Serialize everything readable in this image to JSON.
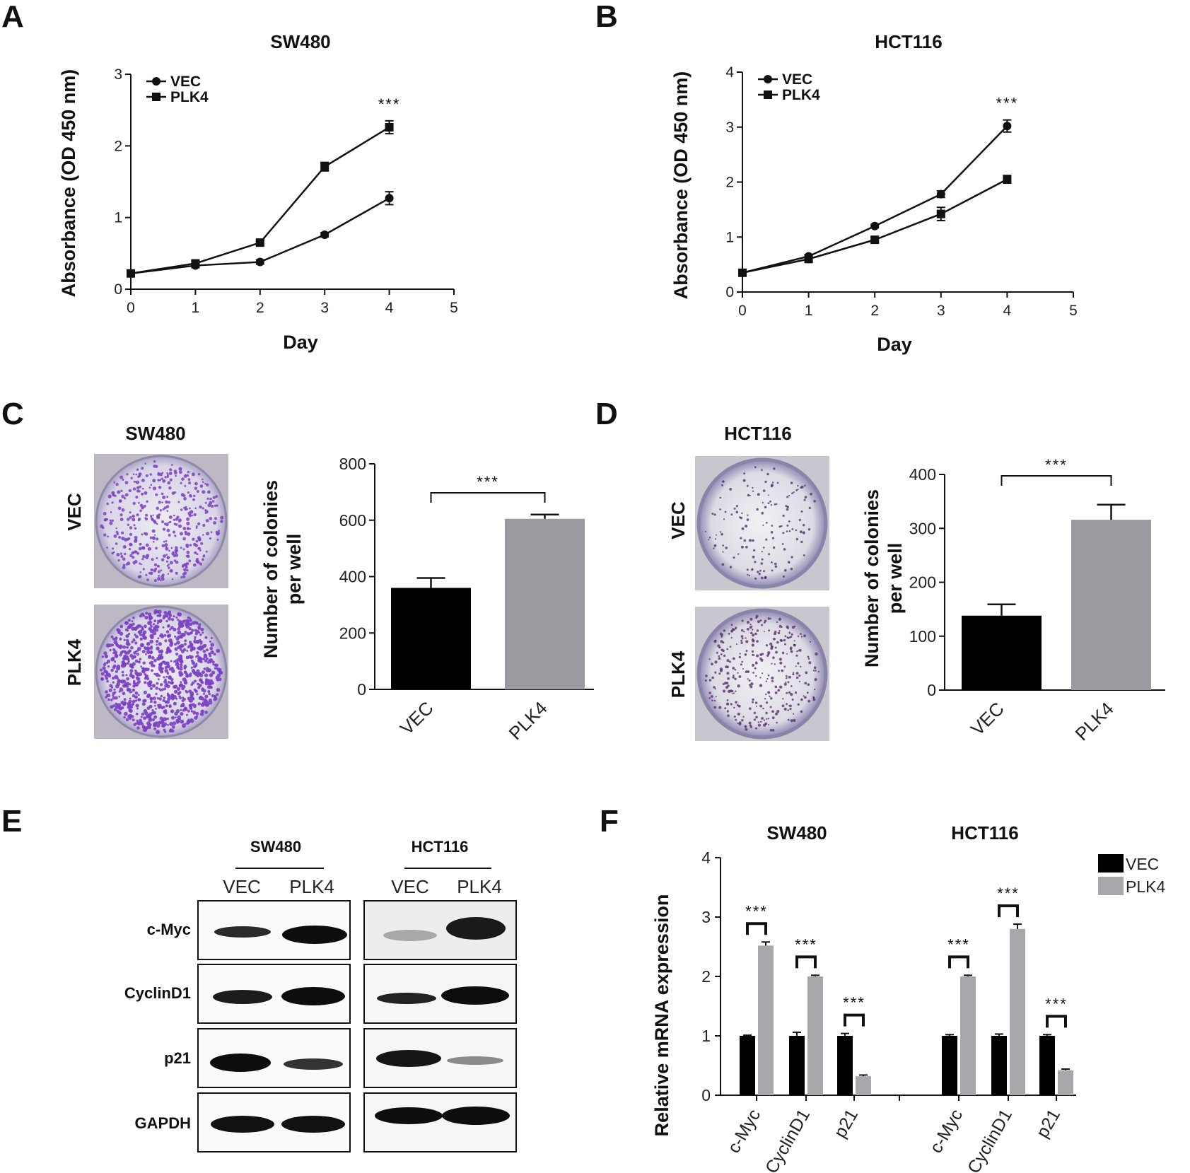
{
  "panel_labels": {
    "a": "A",
    "b": "B",
    "c": "C",
    "d": "D",
    "e": "E",
    "f": "F"
  },
  "colors": {
    "vec": "#000000",
    "plk4": "#9a9aa0",
    "plk4_light": "#a8a8ac",
    "colony_stain": "#7b3fc4",
    "plate_bg": "#e6e4ec"
  },
  "chart_data": [
    {
      "id": "A",
      "type": "line",
      "title": "SW480",
      "xlabel": "Day",
      "ylabel": "Absorbance (OD 450 nm)",
      "xlim": [
        0,
        5
      ],
      "ylim": [
        0,
        3
      ],
      "xticks": [
        0,
        1,
        2,
        3,
        4,
        5
      ],
      "yticks": [
        0,
        1,
        2,
        3
      ],
      "legend_position": "top-left",
      "annotation": "***",
      "x": [
        0,
        1,
        2,
        3,
        4
      ],
      "series": [
        {
          "name": "VEC",
          "marker": "circle",
          "values": [
            0.22,
            0.33,
            0.38,
            0.76,
            1.27
          ],
          "err": [
            0.02,
            0.03,
            0.03,
            0.03,
            0.09
          ]
        },
        {
          "name": "PLK4",
          "marker": "square",
          "values": [
            0.22,
            0.36,
            0.65,
            1.71,
            2.26
          ],
          "err": [
            0.02,
            0.03,
            0.04,
            0.06,
            0.09
          ]
        }
      ]
    },
    {
      "id": "B",
      "type": "line",
      "title": "HCT116",
      "xlabel": "Day",
      "ylabel": "Absorbance (OD 450 nm)",
      "xlim": [
        0,
        5
      ],
      "ylim": [
        0,
        4
      ],
      "xticks": [
        0,
        1,
        2,
        3,
        4,
        5
      ],
      "yticks": [
        0,
        1,
        2,
        3,
        4
      ],
      "legend_position": "top-left",
      "annotation": "***",
      "x": [
        0,
        1,
        2,
        3,
        4
      ],
      "series": [
        {
          "name": "VEC",
          "marker": "circle",
          "values": [
            0.35,
            0.65,
            1.2,
            1.78,
            3.02
          ],
          "err": [
            0.02,
            0.03,
            0.03,
            0.06,
            0.11
          ]
        },
        {
          "name": "PLK4",
          "marker": "square",
          "values": [
            0.35,
            0.6,
            0.95,
            1.42,
            2.05
          ],
          "err": [
            0.02,
            0.03,
            0.04,
            0.12,
            0.07
          ]
        }
      ]
    },
    {
      "id": "C",
      "type": "bar",
      "title": "SW480",
      "ylabel_lines": [
        "Number of colonies",
        "per well"
      ],
      "categories": [
        "VEC",
        "PLK4"
      ],
      "ylim": [
        0,
        800
      ],
      "yticks": [
        0,
        200,
        400,
        600,
        800
      ],
      "values": [
        360,
        605
      ],
      "err": [
        35,
        15
      ],
      "annotation": "***"
    },
    {
      "id": "D",
      "type": "bar",
      "title": "HCT116",
      "ylabel_lines": [
        "Number of colonies",
        "per well"
      ],
      "categories": [
        "VEC",
        "PLK4"
      ],
      "ylim": [
        0,
        400
      ],
      "yticks": [
        0,
        100,
        200,
        300,
        400
      ],
      "values": [
        138,
        316
      ],
      "err": [
        21,
        28
      ],
      "annotation": "***"
    },
    {
      "id": "F",
      "type": "bar",
      "ylabel": "Relative mRNA expression",
      "group_titles": [
        "SW480",
        "HCT116"
      ],
      "categories": [
        "c-Myc",
        "CyclinD1",
        "p21",
        "c-Myc",
        "CyclinD1",
        "p21"
      ],
      "ylim": [
        0,
        4
      ],
      "yticks": [
        0,
        1,
        2,
        3,
        4
      ],
      "legend_position": "top-right",
      "annotation": "***",
      "series": [
        {
          "name": "VEC",
          "values": [
            1.0,
            1.0,
            1.0,
            1.0,
            1.0,
            1.0
          ],
          "err": [
            0.01,
            0.06,
            0.04,
            0.02,
            0.03,
            0.02
          ]
        },
        {
          "name": "PLK4",
          "values": [
            2.52,
            2.0,
            0.32,
            2.0,
            2.8,
            0.42
          ],
          "err": [
            0.06,
            0.02,
            0.02,
            0.02,
            0.08,
            0.02
          ]
        }
      ]
    }
  ],
  "plate_images": {
    "c_title": "SW480",
    "d_title": "HCT116",
    "c_rows": [
      "VEC",
      "PLK4"
    ],
    "d_rows": [
      "VEC",
      "PLK4"
    ]
  },
  "western_blot": {
    "cell_lines": [
      "SW480",
      "HCT116"
    ],
    "lanes": [
      "VEC",
      "PLK4",
      "VEC",
      "PLK4"
    ],
    "proteins": [
      "c-Myc",
      "CyclinD1",
      "p21",
      "GAPDH"
    ]
  }
}
